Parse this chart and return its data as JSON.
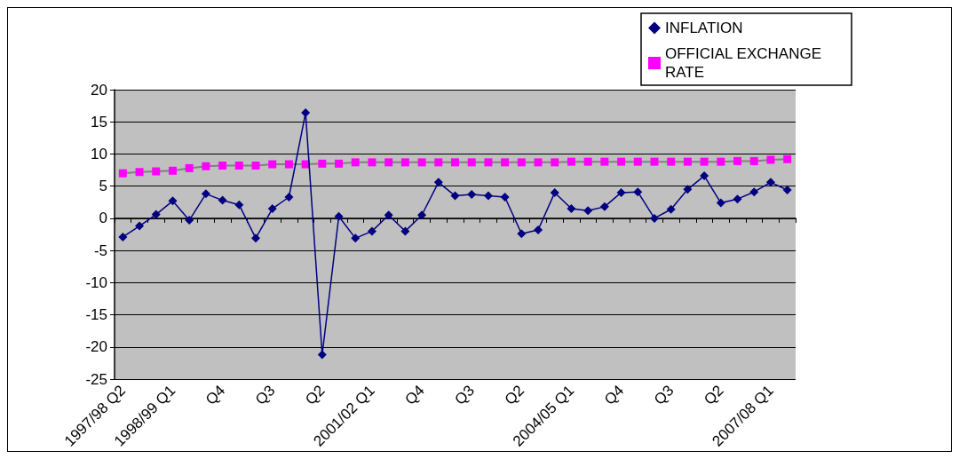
{
  "chart_data": {
    "type": "line",
    "categories": [
      "1997/98 Q2",
      null,
      null,
      "1998/99 Q1",
      null,
      null,
      "Q4",
      null,
      null,
      "Q3",
      null,
      null,
      "Q2",
      null,
      null,
      "2001/02 Q1",
      null,
      null,
      "Q4",
      null,
      null,
      "Q3",
      null,
      null,
      "Q2",
      null,
      null,
      "2004/05 Q1",
      null,
      null,
      "Q4",
      null,
      null,
      "Q3",
      null,
      null,
      "Q2",
      null,
      null,
      "2007/08 Q1",
      null
    ],
    "series": [
      {
        "name": "INFLATION",
        "color": "#000080",
        "marker": "diamond",
        "values": [
          -2.9,
          -1.2,
          0.6,
          2.7,
          -0.3,
          3.8,
          2.8,
          2.1,
          -3.1,
          1.5,
          3.3,
          16.4,
          -21.2,
          0.3,
          -3.1,
          -2.0,
          0.5,
          -2.0,
          0.5,
          5.6,
          3.5,
          3.7,
          3.5,
          3.3,
          -2.4,
          -1.8,
          4.0,
          1.5,
          1.2,
          1.8,
          4.0,
          4.1,
          0.0,
          1.4,
          4.5,
          6.6,
          2.4,
          3.0,
          4.1,
          5.6,
          4.4
        ]
      },
      {
        "name": "OFFICIAL EXCHANGE RATE",
        "color": "#ff00ff",
        "marker": "square",
        "values": [
          7.0,
          7.2,
          7.3,
          7.4,
          7.8,
          8.1,
          8.2,
          8.2,
          8.2,
          8.4,
          8.4,
          8.4,
          8.5,
          8.5,
          8.7,
          8.7,
          8.7,
          8.7,
          8.7,
          8.7,
          8.7,
          8.7,
          8.7,
          8.7,
          8.7,
          8.7,
          8.7,
          8.8,
          8.8,
          8.8,
          8.8,
          8.8,
          8.8,
          8.8,
          8.8,
          8.8,
          8.8,
          8.9,
          8.9,
          9.1,
          9.2
        ]
      }
    ],
    "ylim": [
      -25,
      20
    ],
    "yticks": [
      -25,
      -20,
      -15,
      -10,
      -5,
      0,
      5,
      10,
      15,
      20
    ],
    "grid": "y",
    "legend": "top right"
  }
}
